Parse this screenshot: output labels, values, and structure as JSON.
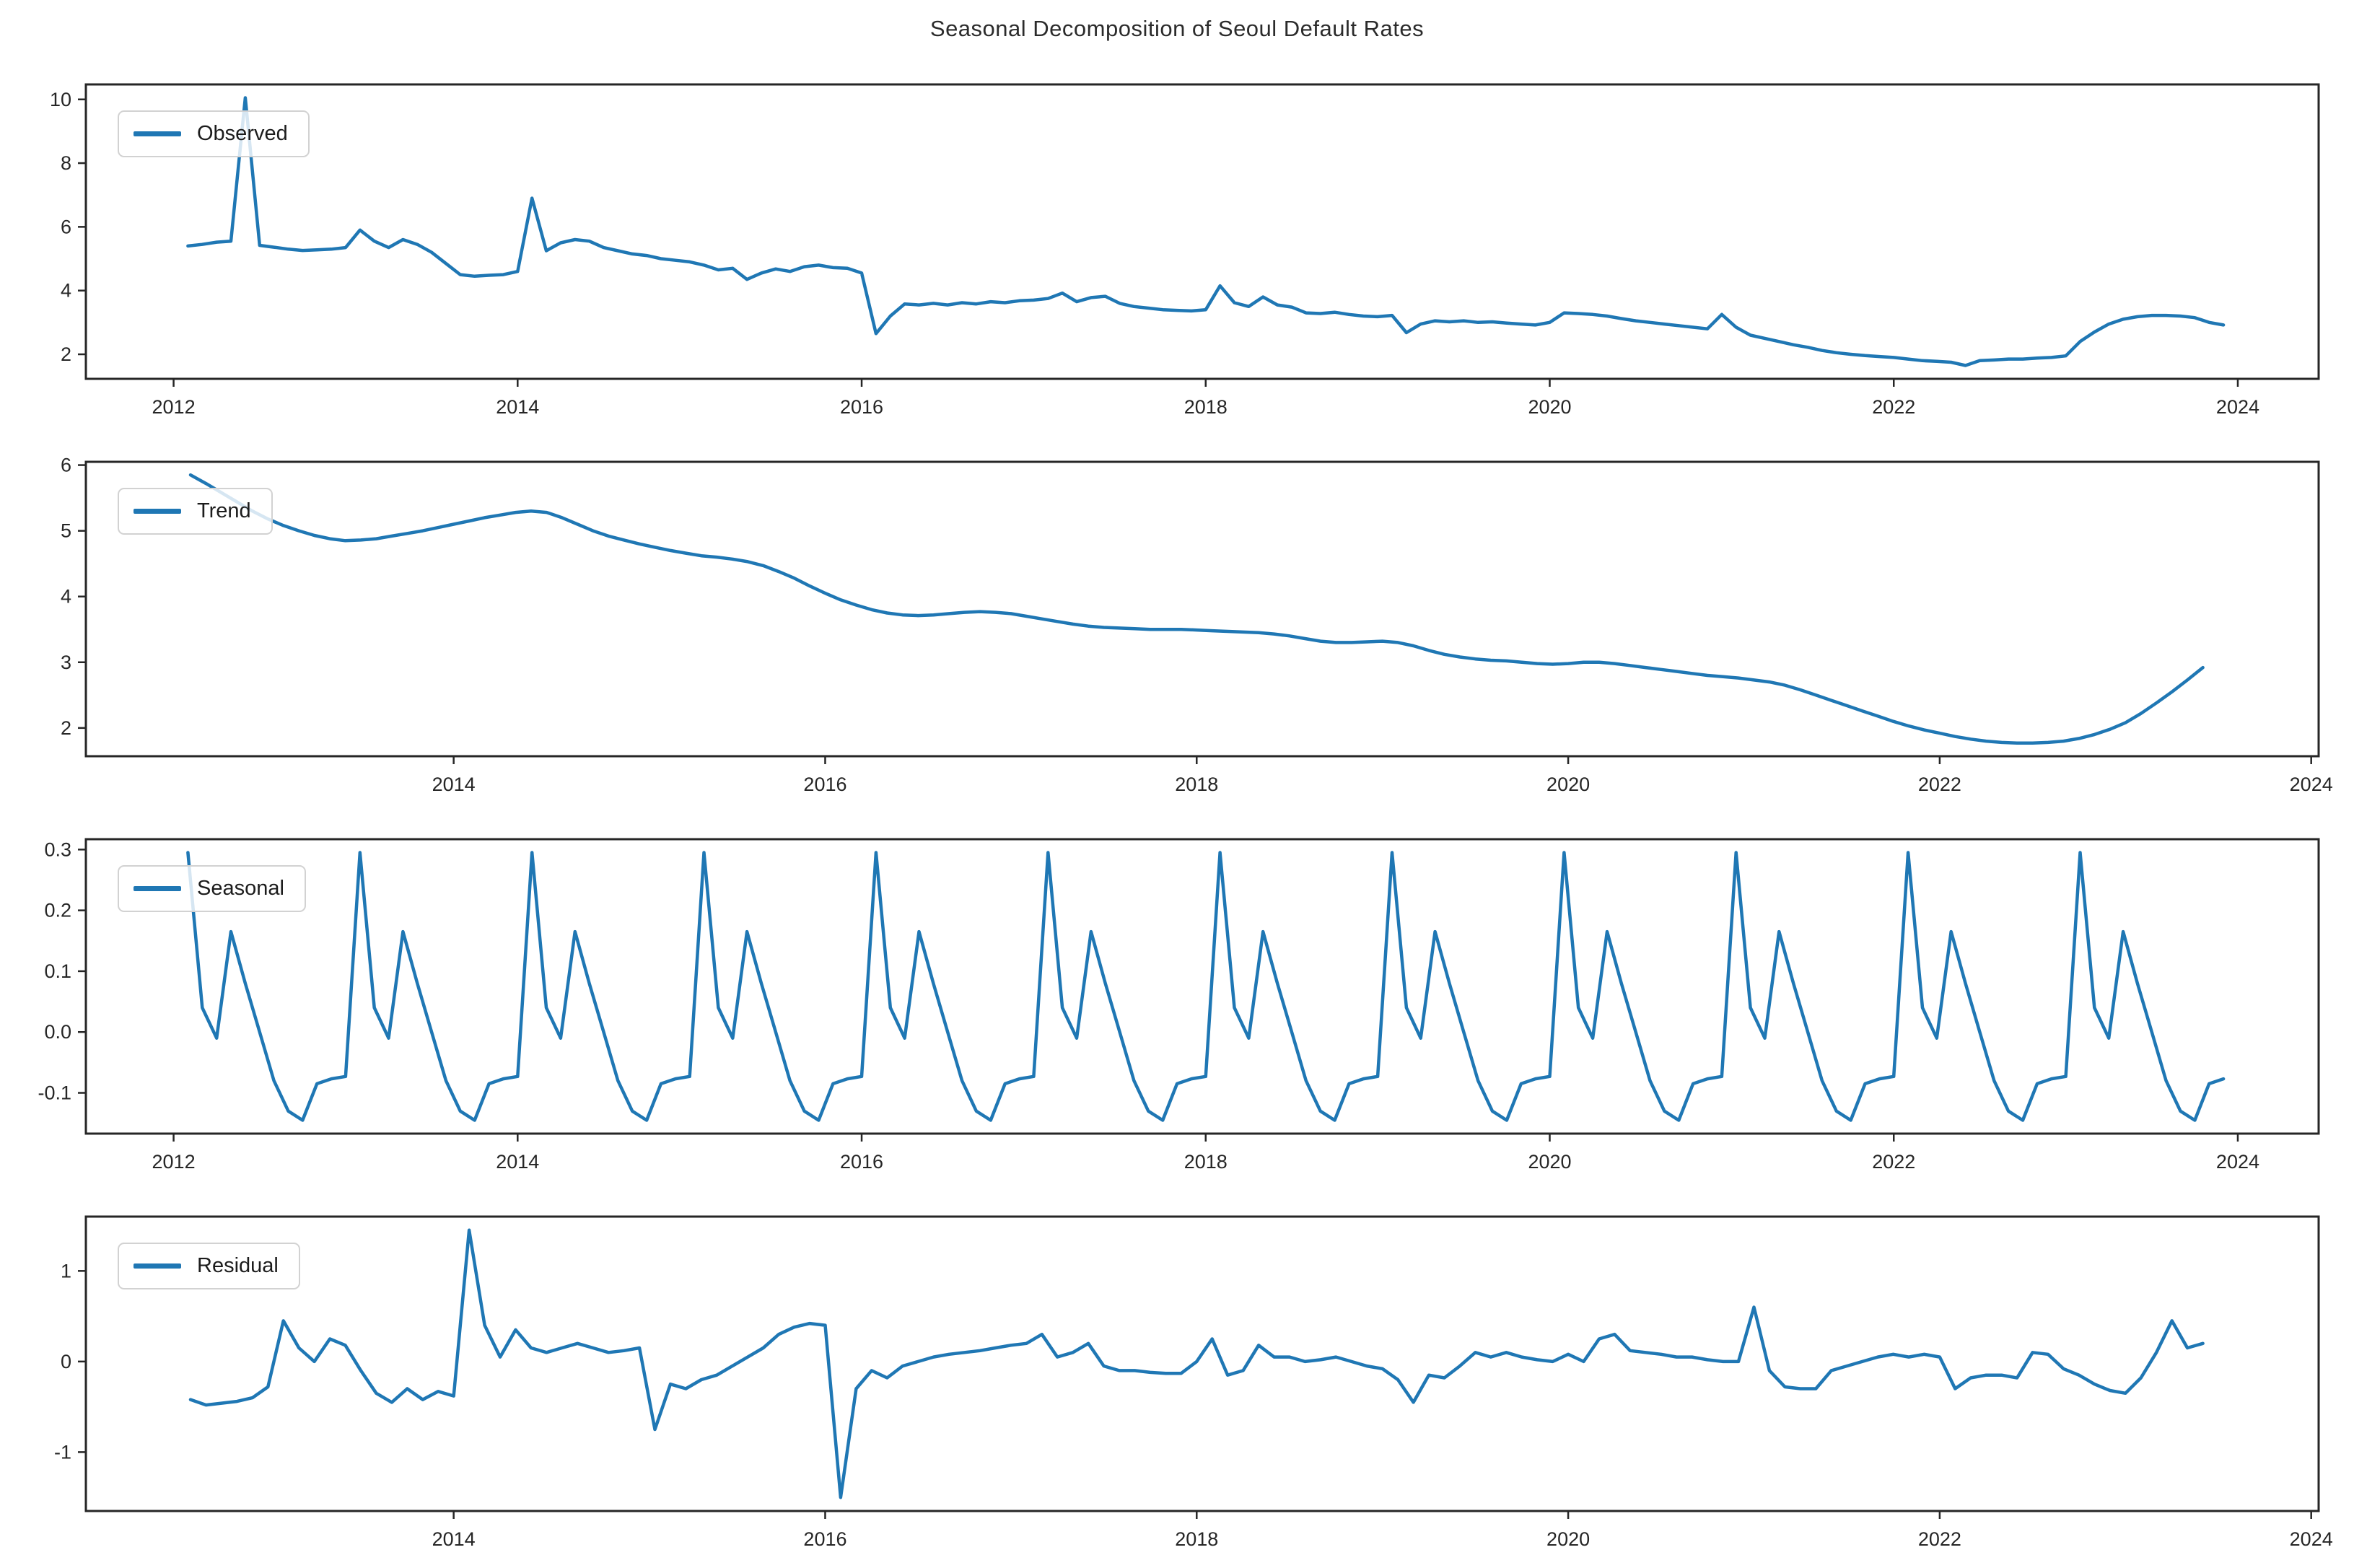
{
  "title": "Seasonal Decomposition of Seoul Default Rates",
  "style": {
    "line_color": "#1f77b4",
    "spine_color": "#262626",
    "tick_label_color": "#262626",
    "background": "#ffffff"
  },
  "chart_data": [
    {
      "type": "line",
      "name": "observed",
      "legend": "Observed",
      "freq": "monthly",
      "start": {
        "year": 2012,
        "month": 2
      },
      "xlim": [
        2011.49,
        2024.47
      ],
      "xticks": [
        2012,
        2014,
        2016,
        2018,
        2020,
        2022,
        2024
      ],
      "xticklabels": [
        "2012",
        "2014",
        "2016",
        "2018",
        "2020",
        "2022",
        "2024"
      ],
      "ylim": [
        1.23,
        10.47
      ],
      "yticks": [
        2,
        4,
        6,
        8,
        10
      ],
      "yticklabels": [
        "2",
        "4",
        "6",
        "8",
        "10"
      ],
      "grid": false,
      "legend_position": "upper-left",
      "values": [
        5.4,
        5.45,
        5.52,
        5.55,
        10.05,
        5.42,
        5.36,
        5.3,
        5.26,
        5.28,
        5.3,
        5.35,
        5.9,
        5.55,
        5.35,
        5.6,
        5.45,
        5.2,
        4.85,
        4.5,
        4.45,
        4.48,
        4.5,
        4.6,
        6.9,
        5.25,
        5.5,
        5.6,
        5.55,
        5.35,
        5.25,
        5.15,
        5.1,
        5.0,
        4.95,
        4.9,
        4.8,
        4.65,
        4.7,
        4.35,
        4.55,
        4.68,
        4.6,
        4.75,
        4.8,
        4.72,
        4.7,
        4.55,
        2.65,
        3.2,
        3.58,
        3.55,
        3.6,
        3.55,
        3.62,
        3.58,
        3.65,
        3.62,
        3.68,
        3.7,
        3.75,
        3.92,
        3.65,
        3.78,
        3.82,
        3.6,
        3.5,
        3.45,
        3.4,
        3.38,
        3.36,
        3.4,
        4.15,
        3.62,
        3.5,
        3.8,
        3.55,
        3.48,
        3.3,
        3.28,
        3.32,
        3.25,
        3.2,
        3.18,
        3.22,
        2.68,
        2.95,
        3.05,
        3.02,
        3.05,
        3.0,
        3.02,
        2.98,
        2.95,
        2.92,
        3.0,
        3.3,
        3.28,
        3.25,
        3.2,
        3.12,
        3.05,
        3.0,
        2.95,
        2.9,
        2.85,
        2.8,
        3.25,
        2.85,
        2.6,
        2.5,
        2.4,
        2.3,
        2.22,
        2.12,
        2.05,
        2.0,
        1.96,
        1.93,
        1.9,
        1.85,
        1.8,
        1.78,
        1.75,
        1.65,
        1.8,
        1.82,
        1.85,
        1.85,
        1.88,
        1.9,
        1.95,
        2.4,
        2.7,
        2.95,
        3.1,
        3.18,
        3.22,
        3.22,
        3.2,
        3.15,
        3.0,
        2.92
      ]
    },
    {
      "type": "line",
      "name": "trend",
      "legend": "Trend",
      "freq": "monthly",
      "start": {
        "year": 2012,
        "month": 8
      },
      "xlim": [
        2012.02,
        2024.04
      ],
      "xticks": [
        2014,
        2016,
        2018,
        2020,
        2022,
        2024
      ],
      "xticklabels": [
        "2014",
        "2016",
        "2018",
        "2020",
        "2022",
        "2024"
      ],
      "ylim": [
        1.57,
        6.05
      ],
      "yticks": [
        2,
        3,
        4,
        5,
        6
      ],
      "yticklabels": [
        "2",
        "3",
        "4",
        "5",
        "6"
      ],
      "grid": false,
      "legend_position": "upper-left",
      "values": [
        5.85,
        5.72,
        5.58,
        5.44,
        5.3,
        5.18,
        5.08,
        5.0,
        4.93,
        4.88,
        4.85,
        4.86,
        4.88,
        4.92,
        4.96,
        5.0,
        5.05,
        5.1,
        5.15,
        5.2,
        5.24,
        5.28,
        5.3,
        5.28,
        5.2,
        5.1,
        5.0,
        4.92,
        4.86,
        4.8,
        4.75,
        4.7,
        4.66,
        4.62,
        4.6,
        4.57,
        4.53,
        4.47,
        4.38,
        4.28,
        4.16,
        4.05,
        3.95,
        3.87,
        3.8,
        3.75,
        3.72,
        3.71,
        3.72,
        3.74,
        3.76,
        3.77,
        3.76,
        3.74,
        3.7,
        3.66,
        3.62,
        3.58,
        3.55,
        3.53,
        3.52,
        3.51,
        3.5,
        3.5,
        3.5,
        3.49,
        3.48,
        3.47,
        3.46,
        3.45,
        3.43,
        3.4,
        3.36,
        3.32,
        3.3,
        3.3,
        3.31,
        3.32,
        3.3,
        3.25,
        3.18,
        3.12,
        3.08,
        3.05,
        3.03,
        3.02,
        3.0,
        2.98,
        2.97,
        2.98,
        3.0,
        3.0,
        2.98,
        2.95,
        2.92,
        2.89,
        2.86,
        2.83,
        2.8,
        2.78,
        2.76,
        2.73,
        2.7,
        2.65,
        2.58,
        2.5,
        2.42,
        2.34,
        2.26,
        2.18,
        2.1,
        2.03,
        1.97,
        1.92,
        1.87,
        1.83,
        1.8,
        1.78,
        1.77,
        1.77,
        1.78,
        1.8,
        1.84,
        1.9,
        1.98,
        2.08,
        2.22,
        2.38,
        2.55,
        2.73,
        2.92
      ]
    },
    {
      "type": "line",
      "name": "seasonal",
      "legend": "Seasonal",
      "freq": "monthly",
      "start": {
        "year": 2012,
        "month": 2
      },
      "xlim": [
        2011.49,
        2024.47
      ],
      "xticks": [
        2012,
        2014,
        2016,
        2018,
        2020,
        2022,
        2024
      ],
      "xticklabels": [
        "2012",
        "2014",
        "2016",
        "2018",
        "2020",
        "2022",
        "2024"
      ],
      "ylim": [
        -0.167,
        0.317
      ],
      "yticks": [
        -0.1,
        0.0,
        0.1,
        0.2,
        0.3
      ],
      "yticklabels": [
        "-0.1",
        "0.0",
        "0.1",
        "0.2",
        "0.3"
      ],
      "grid": false,
      "legend_position": "upper-left",
      "period_months": 12,
      "n_points": 143,
      "pattern_start_month": "Feb",
      "pattern": [
        0.295,
        0.04,
        -0.01,
        0.165,
        0.08,
        0.0,
        -0.08,
        -0.13,
        -0.145,
        -0.085,
        -0.077,
        -0.073
      ]
    },
    {
      "type": "line",
      "name": "residual",
      "legend": "Residual",
      "freq": "monthly",
      "start": {
        "year": 2012,
        "month": 8
      },
      "xlim": [
        2012.02,
        2024.04
      ],
      "xticks": [
        2014,
        2016,
        2018,
        2020,
        2022,
        2024
      ],
      "xticklabels": [
        "2014",
        "2016",
        "2018",
        "2020",
        "2022",
        "2024"
      ],
      "ylim": [
        -1.65,
        1.6
      ],
      "yticks": [
        -1,
        0,
        1
      ],
      "yticklabels": [
        "-1",
        "0",
        "1"
      ],
      "grid": false,
      "legend_position": "upper-left",
      "values": [
        -0.42,
        -0.48,
        -0.46,
        -0.44,
        -0.4,
        -0.28,
        0.45,
        0.15,
        0.0,
        0.25,
        0.18,
        -0.1,
        -0.35,
        -0.45,
        -0.3,
        -0.42,
        -0.33,
        -0.38,
        1.45,
        0.4,
        0.05,
        0.35,
        0.15,
        0.1,
        0.15,
        0.2,
        0.15,
        0.1,
        0.12,
        0.15,
        -0.75,
        -0.25,
        -0.3,
        -0.2,
        -0.15,
        -0.05,
        0.05,
        0.15,
        0.3,
        0.38,
        0.42,
        0.4,
        -1.5,
        -0.3,
        -0.1,
        -0.18,
        -0.05,
        0.0,
        0.05,
        0.08,
        0.1,
        0.12,
        0.15,
        0.18,
        0.2,
        0.3,
        0.05,
        0.1,
        0.2,
        -0.05,
        -0.1,
        -0.1,
        -0.12,
        -0.13,
        -0.13,
        0.0,
        0.25,
        -0.15,
        -0.1,
        0.18,
        0.05,
        0.05,
        0.0,
        0.02,
        0.05,
        0.0,
        -0.05,
        -0.08,
        -0.2,
        -0.45,
        -0.15,
        -0.18,
        -0.05,
        0.1,
        0.05,
        0.1,
        0.05,
        0.02,
        0.0,
        0.08,
        0.0,
        0.25,
        0.3,
        0.12,
        0.1,
        0.08,
        0.05,
        0.05,
        0.02,
        0.0,
        0.0,
        0.6,
        -0.1,
        -0.28,
        -0.3,
        -0.3,
        -0.1,
        -0.05,
        0.0,
        0.05,
        0.08,
        0.05,
        0.08,
        0.05,
        -0.3,
        -0.18,
        -0.15,
        -0.15,
        -0.18,
        0.1,
        0.08,
        -0.08,
        -0.15,
        -0.25,
        -0.32,
        -0.35,
        -0.18,
        0.1,
        0.45,
        0.15,
        0.2
      ]
    }
  ]
}
